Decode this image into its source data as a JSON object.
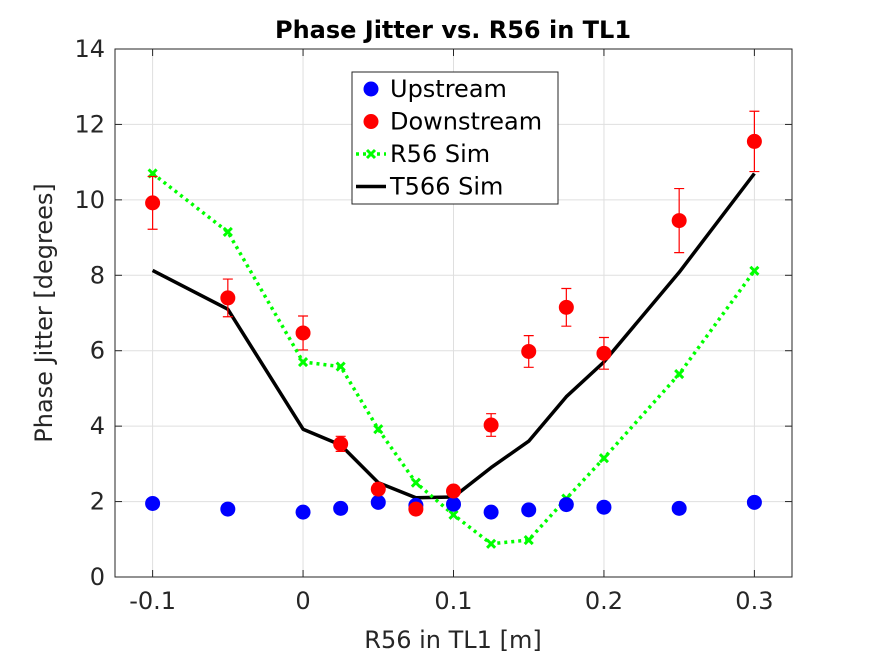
{
  "chart_data": {
    "type": "scatter",
    "title": "Phase Jitter vs. R56 in TL1",
    "xlabel": "R56 in TL1 [m]",
    "ylabel": "Phase Jitter [degrees]",
    "xlim": [
      -0.125,
      0.325
    ],
    "ylim": [
      0,
      14
    ],
    "xticks": [
      -0.1,
      0,
      0.1,
      0.2,
      0.3
    ],
    "xtick_labels": [
      "-0.1",
      "0",
      "0.1",
      "0.2",
      "0.3"
    ],
    "yticks": [
      0,
      2,
      4,
      6,
      8,
      10,
      12,
      14
    ],
    "ytick_labels": [
      "0",
      "2",
      "4",
      "6",
      "8",
      "10",
      "12",
      "14"
    ],
    "grid": true,
    "legend_position": "top-center",
    "series": [
      {
        "name": "Upstream",
        "kind": "scatter",
        "color": "#0000ff",
        "x": [
          -0.1,
          -0.05,
          0,
          0.025,
          0.05,
          0.075,
          0.1,
          0.125,
          0.15,
          0.175,
          0.2,
          0.25,
          0.3
        ],
        "y": [
          1.95,
          1.8,
          1.72,
          1.82,
          1.98,
          1.9,
          1.93,
          1.72,
          1.78,
          1.92,
          1.85,
          1.82,
          1.98
        ],
        "err": [
          0.1,
          0.1,
          0.1,
          0.1,
          0.1,
          0.1,
          0.1,
          0.1,
          0.1,
          0.1,
          0.1,
          0.1,
          0.1
        ]
      },
      {
        "name": "Downstream",
        "kind": "scatter",
        "color": "#ff0000",
        "x": [
          -0.1,
          -0.05,
          0,
          0.025,
          0.05,
          0.075,
          0.1,
          0.125,
          0.15,
          0.175,
          0.2,
          0.25,
          0.3
        ],
        "y": [
          9.92,
          7.4,
          6.47,
          3.53,
          2.33,
          1.8,
          2.28,
          4.03,
          5.98,
          7.15,
          5.93,
          9.45,
          11.55
        ],
        "err": [
          0.7,
          0.5,
          0.45,
          0.2,
          0.15,
          0.12,
          0.12,
          0.3,
          0.42,
          0.5,
          0.42,
          0.85,
          0.8
        ]
      },
      {
        "name": "R56 Sim",
        "kind": "line-marker",
        "color": "#00ff00",
        "x": [
          -0.1,
          -0.05,
          0,
          0.025,
          0.05,
          0.075,
          0.1,
          0.125,
          0.15,
          0.175,
          0.2,
          0.25,
          0.3
        ],
        "y": [
          10.7,
          9.15,
          5.7,
          5.58,
          3.92,
          2.5,
          1.65,
          0.88,
          0.98,
          2.08,
          3.15,
          5.38,
          8.12
        ]
      },
      {
        "name": "T566 Sim",
        "kind": "line",
        "color": "#000000",
        "x": [
          -0.1,
          -0.05,
          0,
          0.025,
          0.05,
          0.075,
          0.1,
          0.125,
          0.15,
          0.175,
          0.2,
          0.25,
          0.3
        ],
        "y": [
          8.13,
          7.1,
          3.92,
          3.5,
          2.5,
          2.1,
          2.12,
          2.9,
          3.6,
          4.78,
          5.7,
          8.08,
          10.7
        ]
      }
    ]
  }
}
